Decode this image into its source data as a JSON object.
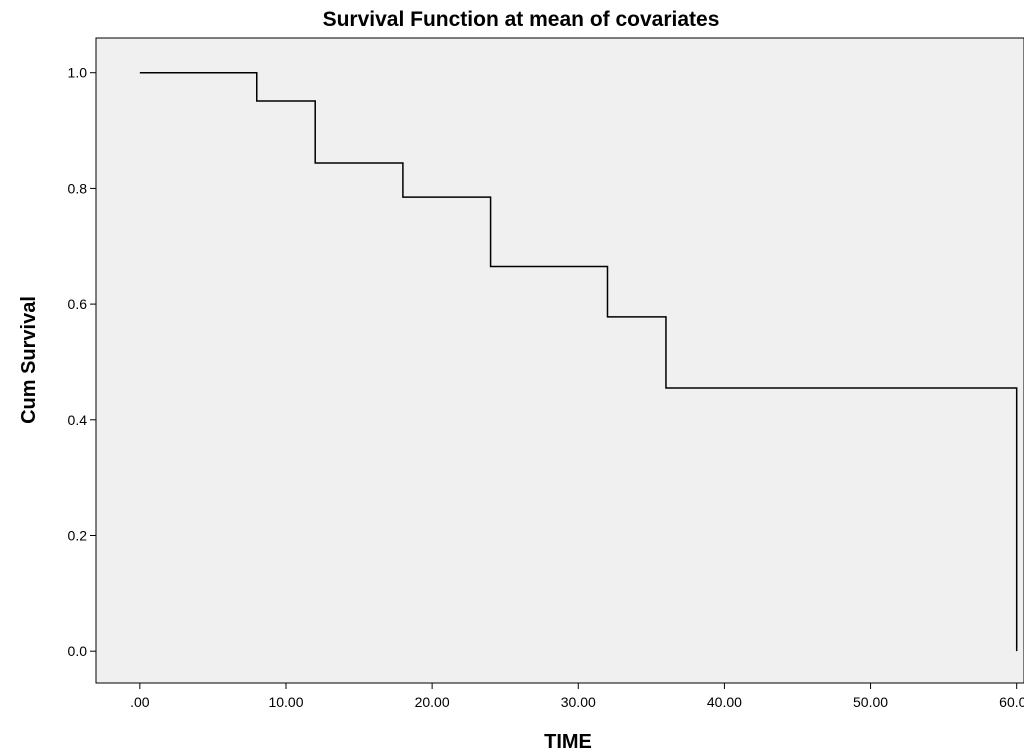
{
  "chart_data": {
    "type": "line",
    "step": true,
    "title": "Survival Function at mean of covariates",
    "xlabel": "TIME",
    "ylabel": "Cum Survival",
    "xlim": [
      -3,
      60.5
    ],
    "ylim": [
      -0.055,
      1.06
    ],
    "xticks": [
      0,
      10,
      20,
      30,
      40,
      50,
      60
    ],
    "xtick_labels": [
      ".00",
      "10.00",
      "20.00",
      "30.00",
      "40.00",
      "50.00",
      "60.00"
    ],
    "yticks": [
      0,
      0.2,
      0.4,
      0.6,
      0.8,
      1.0
    ],
    "ytick_labels": [
      "0.0",
      "0.2",
      "0.4",
      "0.6",
      "0.8",
      "1.0"
    ],
    "grid": false,
    "legend": "none",
    "background": "#f0f0f0",
    "line_color": "#000000",
    "series": [
      {
        "x": [
          0,
          8,
          12,
          18,
          24,
          32,
          36,
          60
        ],
        "y": [
          1.0,
          0.951,
          0.844,
          0.785,
          0.665,
          0.578,
          0.455,
          0.0
        ]
      }
    ]
  }
}
